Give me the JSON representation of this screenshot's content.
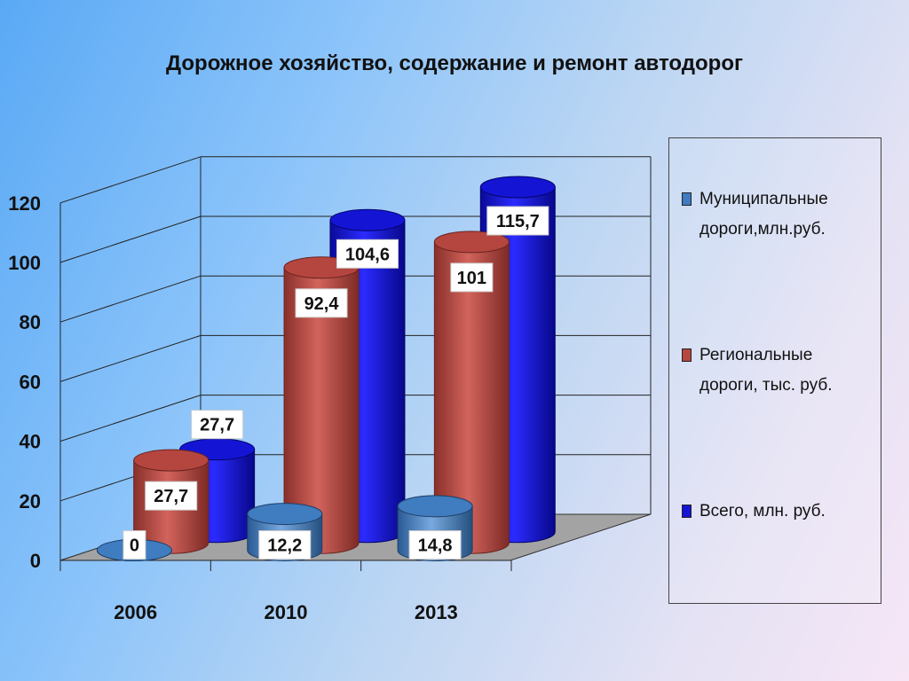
{
  "chart_data": {
    "type": "bar",
    "title": "Дорожное хозяйство, содержание и ремонт автодорог",
    "categories": [
      "2006",
      "2010",
      "2013"
    ],
    "yticks": [
      "0",
      "20",
      "40",
      "60",
      "80",
      "100",
      "120"
    ],
    "ylim": [
      0,
      120
    ],
    "grid": true,
    "legend_position": "right",
    "series": [
      {
        "name": "Муниципальные дороги,млн.руб.",
        "values": [
          0,
          12.2,
          14.8
        ],
        "labels": [
          "0",
          "12,2",
          "14,8"
        ],
        "color": "#3f7cc0"
      },
      {
        "name": "Региональные дороги, тыс. руб.",
        "values": [
          27.7,
          92.4,
          101
        ],
        "labels": [
          "27,7",
          "92,4",
          "101"
        ],
        "color": "#b5463f"
      },
      {
        "name": "Всего, млн. руб.",
        "values": [
          27.7,
          104.6,
          115.7
        ],
        "labels": [
          "27,7",
          "104,6",
          "115,7"
        ],
        "color": "#1414d4"
      }
    ]
  },
  "legend": {
    "items": [
      {
        "line1": "Муниципальные",
        "line2": "дороги,млн.руб.",
        "color": "#3f7cc0"
      },
      {
        "line1": "Региональные",
        "line2": "дороги, тыс. руб.",
        "color": "#b5463f"
      },
      {
        "line1": "Всего, млн. руб.",
        "line2": "",
        "color": "#1414d4"
      }
    ]
  }
}
